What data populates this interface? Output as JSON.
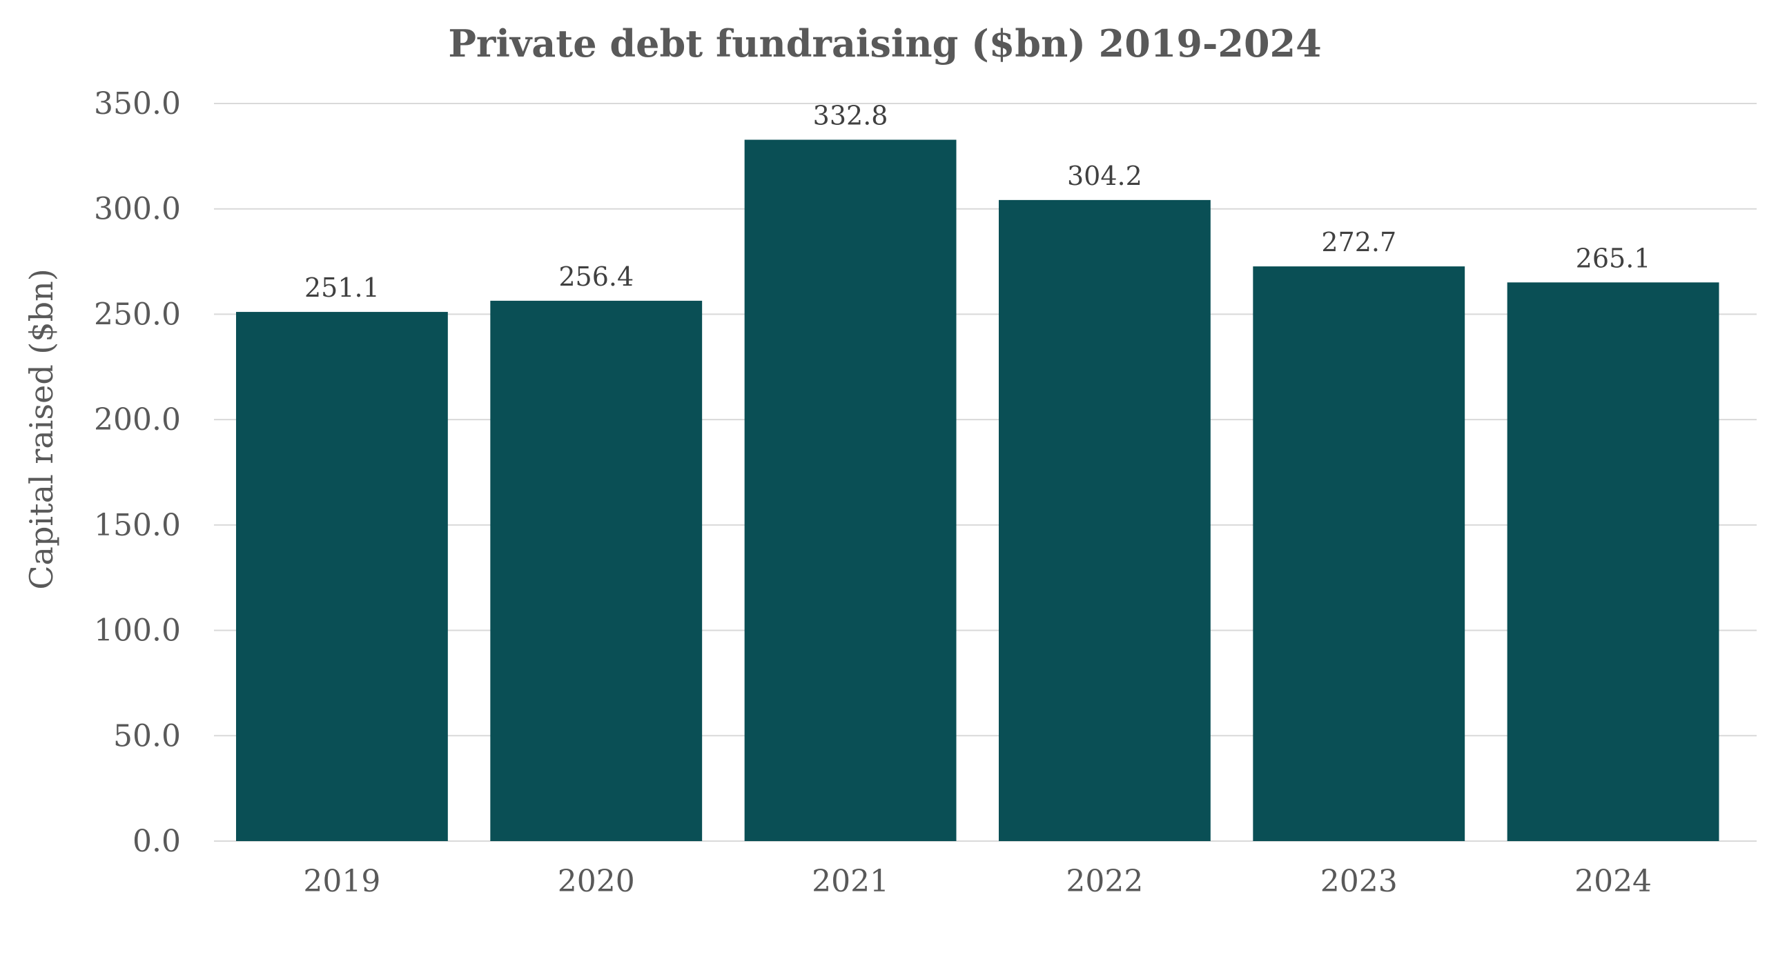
{
  "chart_data": {
    "type": "bar",
    "title": "Private debt fundraising ($bn) 2019-2024",
    "xlabel": "",
    "ylabel": "Capital raised ($bn)",
    "categories": [
      "2019",
      "2020",
      "2021",
      "2022",
      "2023",
      "2024"
    ],
    "values": [
      251.1,
      256.4,
      332.8,
      304.2,
      272.7,
      265.1
    ],
    "value_labels": [
      "251.1",
      "256.4",
      "332.8",
      "304.2",
      "272.7",
      "265.1"
    ],
    "ylim": [
      0,
      350
    ],
    "yticks": [
      0,
      50,
      100,
      150,
      200,
      250,
      300,
      350
    ],
    "ytick_labels": [
      "0.0",
      "50.0",
      "100.0",
      "150.0",
      "200.0",
      "250.0",
      "300.0",
      "350.0"
    ],
    "grid": true,
    "legend": "none",
    "bar_color": "#0a4f55"
  }
}
